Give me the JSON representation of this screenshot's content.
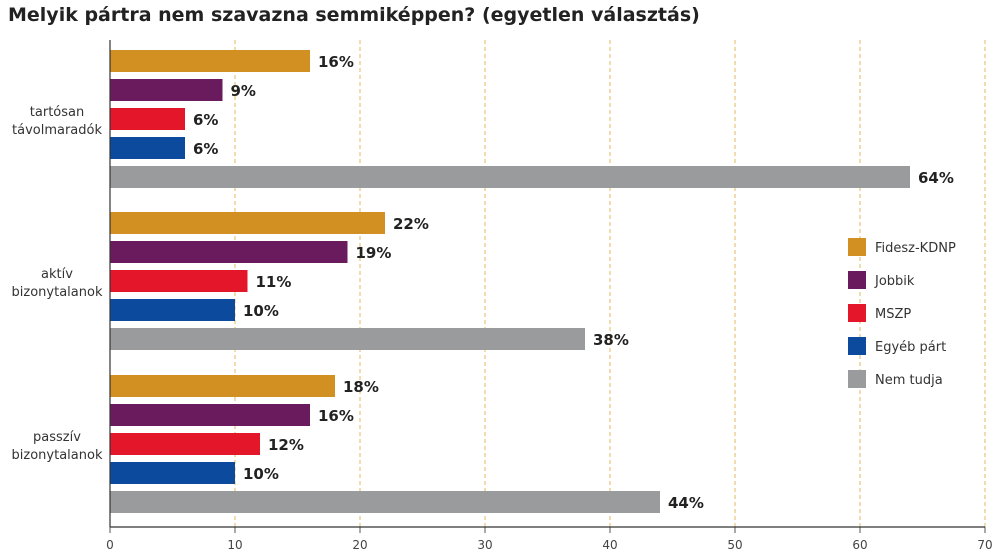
{
  "chart_data": {
    "type": "bar",
    "orientation": "horizontal",
    "title": "Melyik pártra nem szavazna semmiképpen? (egyetlen választás)",
    "xlabel": "",
    "ylabel": "",
    "xlim": [
      0,
      70
    ],
    "xticks": [
      "0",
      "10",
      "20",
      "30",
      "40",
      "50",
      "60",
      "70"
    ],
    "grid": true,
    "legend_position": "right",
    "categories": [
      [
        "tartósan",
        "távolmaradók"
      ],
      [
        "aktív",
        "bizonytalanok"
      ],
      [
        "passzív",
        "bizonytalanok"
      ]
    ],
    "series": [
      {
        "name": "Fidesz-KDNP",
        "color": "#d39022",
        "values": [
          16,
          22,
          18
        ],
        "labels": [
          "16%",
          "22%",
          "18%"
        ]
      },
      {
        "name": "Jobbik",
        "color": "#6a1b5e",
        "values": [
          9,
          19,
          16
        ],
        "labels": [
          "9%",
          "19%",
          "16%"
        ]
      },
      {
        "name": "MSZP",
        "color": "#e3162a",
        "values": [
          6,
          11,
          12
        ],
        "labels": [
          "6%",
          "11%",
          "12%"
        ]
      },
      {
        "name": "Egyéb párt",
        "color": "#0b4a9c",
        "values": [
          6,
          10,
          10
        ],
        "labels": [
          "6%",
          "10%",
          "10%"
        ]
      },
      {
        "name": "Nem tudja",
        "color": "#9a9b9d",
        "values": [
          64,
          38,
          44
        ],
        "labels": [
          "64%",
          "38%",
          "44%"
        ]
      }
    ]
  }
}
